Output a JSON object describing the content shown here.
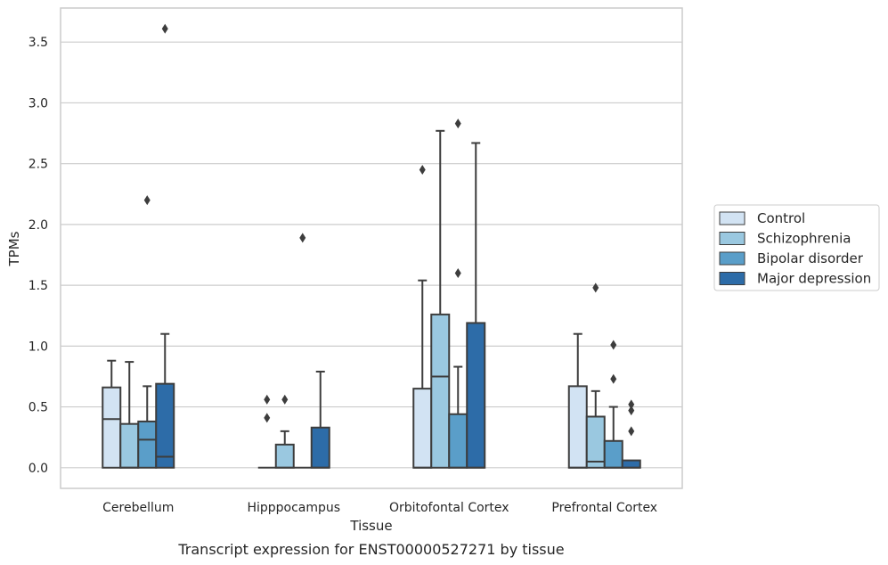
{
  "caption": "Transcript expression for ENST00000527271 by tissue",
  "chart_data": {
    "type": "box",
    "xlabel": "Tissue",
    "ylabel": "TPMs",
    "ylim": [
      -0.17,
      3.78
    ],
    "yticks": [
      0.0,
      0.5,
      1.0,
      1.5,
      2.0,
      2.5,
      3.0,
      3.5
    ],
    "ytick_labels": [
      "0.0",
      "0.5",
      "1.0",
      "1.5",
      "2.0",
      "2.5",
      "3.0",
      "3.5"
    ],
    "grid": "horizontal",
    "legend_position": "right",
    "categories": [
      "Cerebellum",
      "Hipppocampus",
      "Orbitofontal Cortex",
      "Prefrontal Cortex"
    ],
    "series": [
      {
        "name": "Control",
        "color": "#d2e3f3",
        "boxes": [
          {
            "q1": 0.0,
            "median": 0.4,
            "q3": 0.66,
            "whisker_low": 0.0,
            "whisker_high": 0.88,
            "outliers": []
          },
          {
            "q1": 0.0,
            "median": 0.0,
            "q3": 0.0,
            "whisker_low": 0.0,
            "whisker_high": 0.0,
            "outliers": [
              0.41,
              0.56
            ]
          },
          {
            "q1": 0.0,
            "median": 0.0,
            "q3": 0.65,
            "whisker_low": 0.0,
            "whisker_high": 1.54,
            "outliers": [
              2.45
            ]
          },
          {
            "q1": 0.0,
            "median": 0.0,
            "q3": 0.67,
            "whisker_low": 0.0,
            "whisker_high": 1.1,
            "outliers": []
          }
        ]
      },
      {
        "name": "Schizophrenia",
        "color": "#9ac8e0",
        "boxes": [
          {
            "q1": 0.0,
            "median": 0.0,
            "q3": 0.36,
            "whisker_low": 0.0,
            "whisker_high": 0.87,
            "outliers": []
          },
          {
            "q1": 0.0,
            "median": 0.0,
            "q3": 0.19,
            "whisker_low": 0.0,
            "whisker_high": 0.3,
            "outliers": [
              0.56
            ]
          },
          {
            "q1": 0.0,
            "median": 0.75,
            "q3": 1.26,
            "whisker_low": 0.0,
            "whisker_high": 2.77,
            "outliers": []
          },
          {
            "q1": 0.0,
            "median": 0.05,
            "q3": 0.42,
            "whisker_low": 0.0,
            "whisker_high": 0.63,
            "outliers": [
              1.48
            ]
          }
        ]
      },
      {
        "name": "Bipolar disorder",
        "color": "#5a9ec9",
        "boxes": [
          {
            "q1": 0.0,
            "median": 0.23,
            "q3": 0.38,
            "whisker_low": 0.0,
            "whisker_high": 0.67,
            "outliers": [
              2.2
            ]
          },
          {
            "q1": 0.0,
            "median": 0.0,
            "q3": 0.0,
            "whisker_low": 0.0,
            "whisker_high": 0.0,
            "outliers": [
              1.89
            ]
          },
          {
            "q1": 0.0,
            "median": 0.0,
            "q3": 0.44,
            "whisker_low": 0.0,
            "whisker_high": 0.83,
            "outliers": [
              1.6,
              2.83
            ]
          },
          {
            "q1": 0.0,
            "median": 0.0,
            "q3": 0.22,
            "whisker_low": 0.0,
            "whisker_high": 0.5,
            "outliers": [
              0.73,
              1.01
            ]
          }
        ]
      },
      {
        "name": "Major depression",
        "color": "#2d6ca8",
        "boxes": [
          {
            "q1": 0.0,
            "median": 0.09,
            "q3": 0.69,
            "whisker_low": 0.0,
            "whisker_high": 1.1,
            "outliers": [
              3.61
            ]
          },
          {
            "q1": 0.0,
            "median": 0.0,
            "q3": 0.33,
            "whisker_low": 0.0,
            "whisker_high": 0.79,
            "outliers": []
          },
          {
            "q1": 0.0,
            "median": 0.0,
            "q3": 1.19,
            "whisker_low": 0.0,
            "whisker_high": 2.67,
            "outliers": []
          },
          {
            "q1": 0.0,
            "median": 0.0,
            "q3": 0.06,
            "whisker_low": 0.0,
            "whisker_high": 0.06,
            "outliers": [
              0.3,
              0.47,
              0.52
            ]
          }
        ]
      }
    ]
  }
}
